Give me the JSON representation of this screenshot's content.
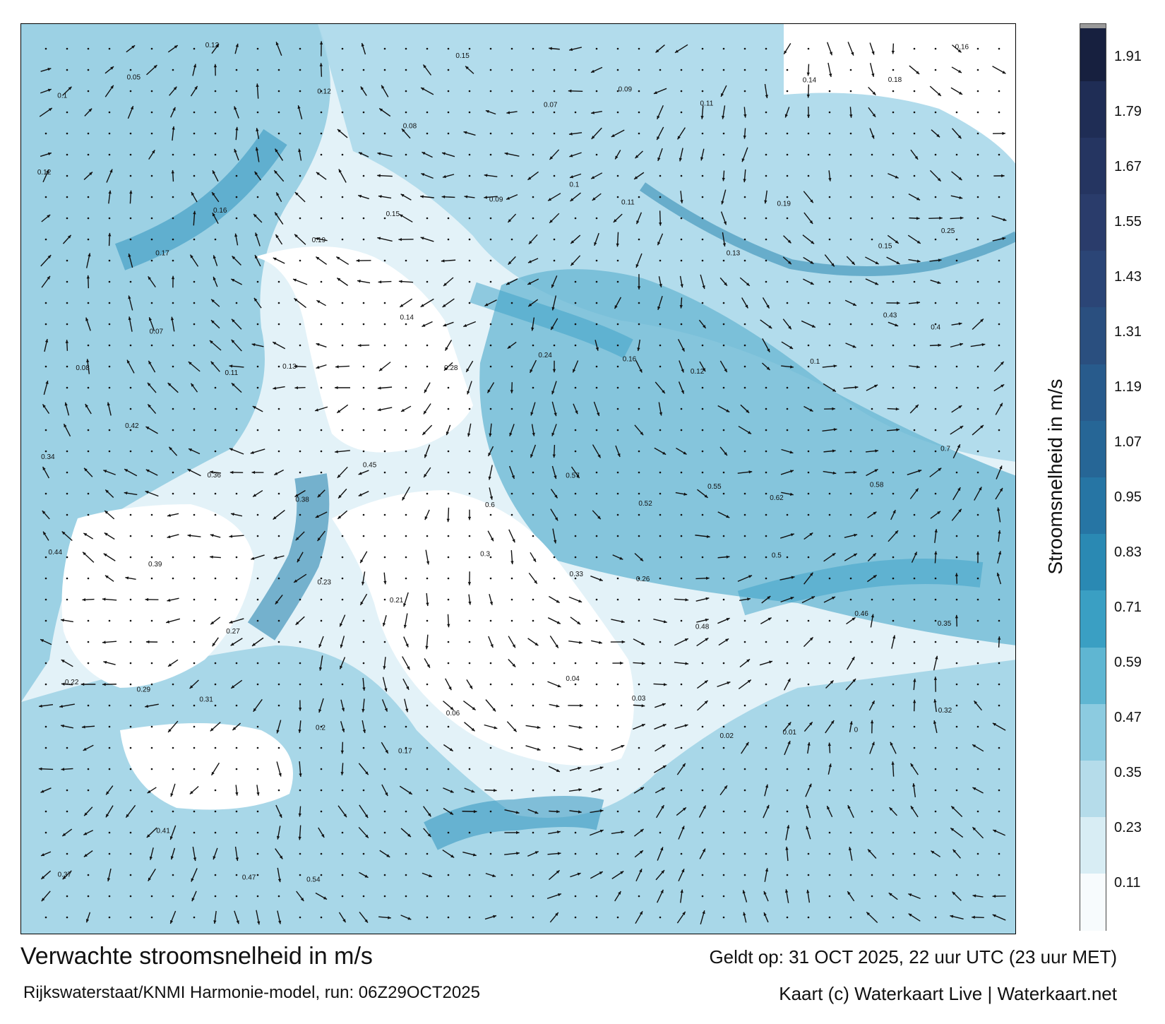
{
  "map": {
    "title": "Verwachte stroomsnelheid in m/s",
    "subtitle": "Rijkswaterstaat/KNMI Harmonie-model, run: 06Z29OCT2025",
    "valid_time": "Geldt op: 31 OCT 2025, 22 uur UTC (23 uur MET)",
    "credit": "Kaart (c) Waterkaart Live | Waterkaart.net"
  },
  "colorbar": {
    "title": "Stroomsnelheid in m/s",
    "ticks": [
      "1.91",
      "1.79",
      "1.67",
      "1.55",
      "1.43",
      "1.31",
      "1.19",
      "1.07",
      "0.95",
      "0.83",
      "0.71",
      "0.59",
      "0.47",
      "0.35",
      "0.23",
      "0.11"
    ],
    "colors": [
      "#f7fbfd",
      "#d8edf4",
      "#b5dcea",
      "#8ccbe0",
      "#5fb6d2",
      "#3a9fc3",
      "#2a89b3",
      "#2675a4",
      "#266696",
      "#285b8c",
      "#2a4f7f",
      "#2b4576",
      "#2a3c6b",
      "#253561",
      "#1f2d55",
      "#17203f"
    ]
  },
  "sea_labels": [
    {
      "v": "0.1",
      "n": "1"
    },
    {
      "v": "0.05",
      "n": "2"
    },
    {
      "v": "0.13",
      "n": "3"
    },
    {
      "v": "0.12",
      "n": "4"
    },
    {
      "v": "0.08",
      "n": "5"
    },
    {
      "v": "0.15",
      "n": "6"
    },
    {
      "v": "0.07",
      "n": "7"
    },
    {
      "v": "0.09",
      "n": "8"
    },
    {
      "v": "0.11",
      "n": "9"
    },
    {
      "v": "0.14",
      "n": "10"
    },
    {
      "v": "0.18",
      "n": "11"
    },
    {
      "v": "0.16",
      "n": "12"
    },
    {
      "v": "0.12",
      "n": "13"
    },
    {
      "v": "0.17",
      "n": "14"
    },
    {
      "v": "0.16",
      "n": "15"
    },
    {
      "v": "0.19",
      "n": "16"
    },
    {
      "v": "0.15",
      "n": "17"
    },
    {
      "v": "0.09",
      "n": "18"
    },
    {
      "v": "0.1",
      "n": "19"
    },
    {
      "v": "0.11",
      "n": "20"
    },
    {
      "v": "0.13",
      "n": "21"
    },
    {
      "v": "0.19",
      "n": "22"
    },
    {
      "v": "0.15",
      "n": "23"
    },
    {
      "v": "0.25",
      "n": "24"
    },
    {
      "v": "0.08",
      "n": "25"
    },
    {
      "v": "0.07",
      "n": "26"
    },
    {
      "v": "0.11",
      "n": "27"
    },
    {
      "v": "0.13",
      "n": "28"
    },
    {
      "v": "0.14",
      "n": "29"
    },
    {
      "v": "0.28",
      "n": "30"
    },
    {
      "v": "0.24",
      "n": "31"
    },
    {
      "v": "0.16",
      "n": "32"
    },
    {
      "v": "0.12",
      "n": "33"
    },
    {
      "v": "0.1",
      "n": "34"
    },
    {
      "v": "0.43",
      "n": "35"
    },
    {
      "v": "0.4",
      "n": "36"
    },
    {
      "v": "0.34",
      "n": "37"
    },
    {
      "v": "0.42",
      "n": "38"
    },
    {
      "v": "0.36",
      "n": "39"
    },
    {
      "v": "0.38",
      "n": "40"
    },
    {
      "v": "0.45",
      "n": "41"
    },
    {
      "v": "0.6",
      "n": "42"
    },
    {
      "v": "0.57",
      "n": "43"
    },
    {
      "v": "0.52",
      "n": "44"
    },
    {
      "v": "0.55",
      "n": "45"
    },
    {
      "v": "0.62",
      "n": "46"
    },
    {
      "v": "0.58",
      "n": "47"
    },
    {
      "v": "0.7",
      "n": "48"
    },
    {
      "v": "0.44",
      "n": "49"
    },
    {
      "v": "0.39",
      "n": "50"
    },
    {
      "v": "0.27",
      "n": "51"
    },
    {
      "v": "0.23",
      "n": "52"
    },
    {
      "v": "0.21",
      "n": "53"
    },
    {
      "v": "0.3",
      "n": "54"
    },
    {
      "v": "0.33",
      "n": "55"
    },
    {
      "v": "0.26",
      "n": "56"
    },
    {
      "v": "0.48",
      "n": "57"
    },
    {
      "v": "0.5",
      "n": "58"
    },
    {
      "v": "0.46",
      "n": "59"
    },
    {
      "v": "0.35",
      "n": "60"
    },
    {
      "v": "0.22",
      "n": "61"
    },
    {
      "v": "0.29",
      "n": "62"
    },
    {
      "v": "0.31",
      "n": "63"
    },
    {
      "v": "0.2",
      "n": "64"
    },
    {
      "v": "0.17",
      "n": "65"
    },
    {
      "v": "0.06",
      "n": "66"
    },
    {
      "v": "0.04",
      "n": "67"
    },
    {
      "v": "0.03",
      "n": "68"
    },
    {
      "v": "0.02",
      "n": "69"
    },
    {
      "v": "0.01",
      "n": "70"
    },
    {
      "v": "0",
      "n": "71"
    },
    {
      "v": "0.32",
      "n": "72"
    },
    {
      "v": "0.37",
      "n": "73"
    },
    {
      "v": "0.41",
      "n": "74"
    },
    {
      "v": "0.47",
      "n": "75"
    },
    {
      "v": "0.54",
      "n": "76"
    }
  ]
}
